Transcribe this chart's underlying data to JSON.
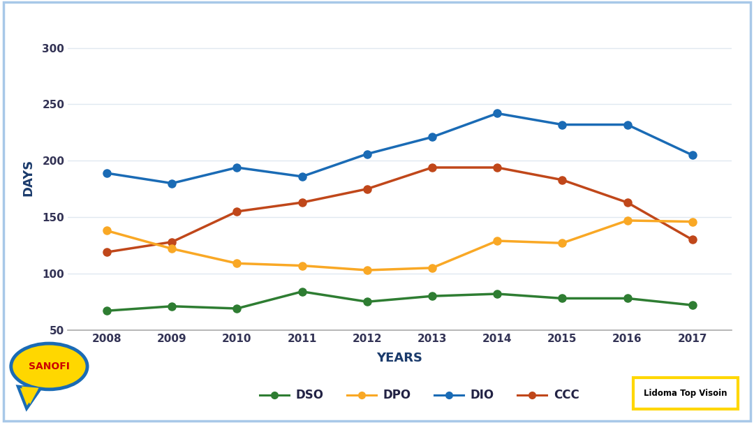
{
  "years": [
    2008,
    2009,
    2010,
    2011,
    2012,
    2013,
    2014,
    2015,
    2016,
    2017
  ],
  "DSO": [
    67,
    71,
    69,
    84,
    75,
    80,
    82,
    78,
    78,
    72
  ],
  "DPO": [
    138,
    122,
    109,
    107,
    103,
    105,
    129,
    127,
    147,
    146
  ],
  "DIO": [
    189,
    180,
    194,
    186,
    206,
    221,
    242,
    232,
    232,
    205
  ],
  "CCC": [
    119,
    128,
    155,
    163,
    175,
    194,
    194,
    183,
    163,
    130
  ],
  "DSO_color": "#2e7d32",
  "DPO_color": "#f9a825",
  "DIO_color": "#1a6bb5",
  "CCC_color": "#c0471a",
  "background_color": "#ffffff",
  "border_color": "#a8c8e8",
  "plot_bg_color": "#ffffff",
  "ylabel": "DAYS",
  "xlabel": "YEARS",
  "ylabel_color": "#1a3a6b",
  "xlabel_color": "#1a3a6b",
  "ylim_min": 50,
  "ylim_max": 320,
  "yticks": [
    50,
    100,
    150,
    200,
    250,
    300
  ],
  "grid_color": "#e0e8f0",
  "tick_color": "#333355",
  "sanofi_fill": "#FFD700",
  "sanofi_border": "#1a6bb5",
  "sanofi_text": "#cc0000",
  "lidoma_border": "#FFD700",
  "lidoma_text": "#000000"
}
